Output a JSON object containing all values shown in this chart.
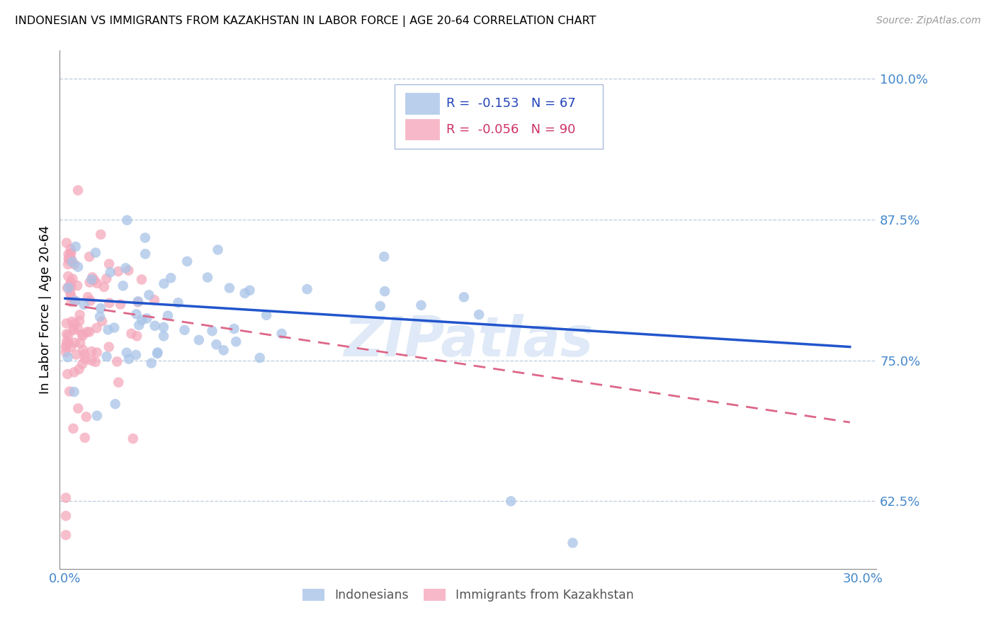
{
  "title": "INDONESIAN VS IMMIGRANTS FROM KAZAKHSTAN IN LABOR FORCE | AGE 20-64 CORRELATION CHART",
  "source": "Source: ZipAtlas.com",
  "ylabel": "In Labor Force | Age 20-64",
  "xlim": [
    -0.002,
    0.305
  ],
  "ylim": [
    0.565,
    1.025
  ],
  "yticks": [
    0.625,
    0.75,
    0.875,
    1.0
  ],
  "ytick_labels": [
    "62.5%",
    "75.0%",
    "87.5%",
    "100.0%"
  ],
  "xticks": [
    0.0,
    0.05,
    0.1,
    0.15,
    0.2,
    0.25,
    0.3
  ],
  "xtick_labels": [
    "0.0%",
    "",
    "",
    "",
    "",
    "",
    "30.0%"
  ],
  "indonesian_R": -0.153,
  "indonesian_N": 67,
  "kazakhstan_R": -0.056,
  "kazakhstan_N": 90,
  "blue_color": "#a8c4e8",
  "pink_color": "#f5a8bc",
  "blue_line_color": "#2255cc",
  "pink_line_color": "#dd6688",
  "tick_color": "#4488cc",
  "grid_color": "#bbccdd",
  "watermark": "ZIPatlas",
  "blue_line_x0": 0.0,
  "blue_line_y0": 0.805,
  "blue_line_x1": 0.295,
  "blue_line_y1": 0.762,
  "pink_line_x0": 0.0,
  "pink_line_y0": 0.8,
  "pink_line_x1": 0.295,
  "pink_line_y1": 0.695
}
